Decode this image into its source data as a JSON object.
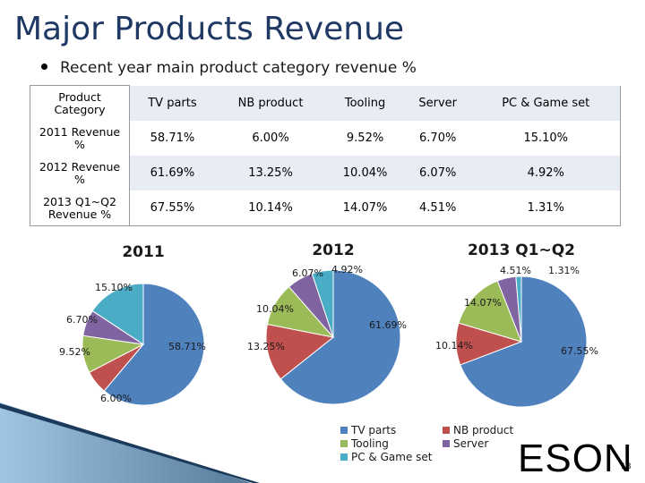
{
  "slide": {
    "title": "Major Products Revenue",
    "bullet": "Recent year main product category revenue %",
    "brand": "ESON",
    "page_number": "18"
  },
  "table": {
    "corner_header": "Product Category",
    "columns": [
      "TV parts",
      "NB product",
      "Tooling",
      "Server",
      "PC & Game set"
    ],
    "rows": [
      {
        "label": "2011 Revenue %",
        "values": [
          "58.71%",
          "6.00%",
          "9.52%",
          "6.70%",
          "15.10%"
        ]
      },
      {
        "label": "2012 Revenue %",
        "values": [
          "61.69%",
          "13.25%",
          "10.04%",
          "6.07%",
          "4.92%"
        ]
      },
      {
        "label": "2013 Q1~Q2 Revenue %",
        "values": [
          "67.55%",
          "10.14%",
          "14.07%",
          "4.51%",
          "1.31%"
        ]
      }
    ]
  },
  "chart_data": [
    {
      "type": "pie",
      "title": "2011",
      "categories": [
        "TV parts",
        "NB product",
        "Tooling",
        "Server",
        "PC & Game set"
      ],
      "values": [
        58.71,
        6.0,
        9.52,
        6.7,
        15.1
      ],
      "labels": [
        "58.71%",
        "6.00%",
        "9.52%",
        "6.70%",
        "15.10%"
      ]
    },
    {
      "type": "pie",
      "title": "2012",
      "categories": [
        "TV parts",
        "NB product",
        "Tooling",
        "Server",
        "PC & Game set"
      ],
      "values": [
        61.69,
        13.25,
        10.04,
        6.07,
        4.92
      ],
      "labels": [
        "61.69%",
        "13.25%",
        "10.04%",
        "6.07%",
        "4.92%"
      ]
    },
    {
      "type": "pie",
      "title": "2013 Q1~Q2",
      "categories": [
        "TV parts",
        "NB product",
        "Tooling",
        "Server",
        "PC & Game set"
      ],
      "values": [
        67.55,
        10.14,
        14.07,
        4.51,
        1.31
      ],
      "labels": [
        "67.55%",
        "10.14%",
        "14.07%",
        "4.51%",
        "1.31%"
      ]
    }
  ],
  "legend": {
    "placement": "bottom-center",
    "items": [
      {
        "label": "TV parts",
        "color": "#4f81bd"
      },
      {
        "label": "NB product",
        "color": "#c0504d"
      },
      {
        "label": "Tooling",
        "color": "#9bbb59"
      },
      {
        "label": "Server",
        "color": "#8064a2"
      },
      {
        "label": "PC & Game set",
        "color": "#4bacc6"
      }
    ]
  },
  "colors": {
    "tv_parts": "#4f81bd",
    "nb_product": "#c0504d",
    "tooling": "#9bbb59",
    "server": "#8064a2",
    "pc_game": "#4bacc6",
    "title": "#1f3864",
    "table_band": "#e8ecf5"
  }
}
